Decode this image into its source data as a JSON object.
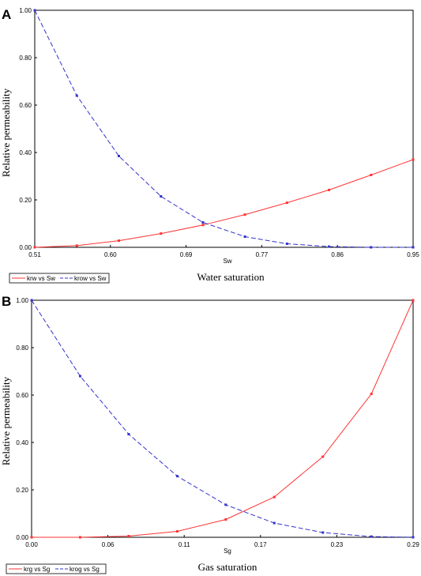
{
  "chart_data": [
    {
      "type": "line",
      "panel_label": "A",
      "xlabel": "Sw",
      "xlabel_outer": "Water saturation",
      "ylabel": "Relative permeability",
      "xlim": [
        0.51,
        0.95
      ],
      "ylim": [
        0,
        1
      ],
      "x_ticks": [
        "0.51",
        "0.60",
        "0.69",
        "0.77",
        "0.86",
        "0.95"
      ],
      "y_ticks": [
        "0.00",
        "0.20",
        "0.40",
        "0.60",
        "0.80",
        "1.00"
      ],
      "grid": false,
      "legend_position": "bottom-left",
      "series": [
        {
          "name": "krw vs Sw",
          "color": "#ff3333",
          "dash": "solid",
          "x": [
            0.51,
            0.5589,
            0.6078,
            0.6567,
            0.7056,
            0.7544,
            0.8033,
            0.8522,
            0.9011,
            0.95
          ],
          "y": [
            0,
            0.007,
            0.028,
            0.058,
            0.094,
            0.138,
            0.188,
            0.242,
            0.305,
            0.37
          ]
        },
        {
          "name": "krow vs Sw",
          "color": "#3333cc",
          "dash": "dashed",
          "x": [
            0.51,
            0.5589,
            0.6078,
            0.6567,
            0.7056,
            0.7544,
            0.8033,
            0.8522,
            0.9011,
            0.95
          ],
          "y": [
            1.0,
            0.64,
            0.385,
            0.215,
            0.105,
            0.045,
            0.015,
            0.003,
            0.0,
            0.0
          ]
        }
      ]
    },
    {
      "type": "line",
      "panel_label": "B",
      "xlabel": "Sg",
      "xlabel_outer": "Gas saturation",
      "ylabel": "Relative permeability",
      "xlim": [
        0,
        0.29
      ],
      "ylim": [
        0,
        1
      ],
      "x_ticks": [
        "0.00",
        "0.06",
        "0.11",
        "0.17",
        "0.23",
        "0.29"
      ],
      "y_ticks": [
        "0.00",
        "0.20",
        "0.40",
        "0.60",
        "0.80",
        "1.00"
      ],
      "grid": false,
      "legend_position": "bottom-left",
      "series": [
        {
          "name": "krg vs Sg",
          "color": "#ff3333",
          "dash": "solid",
          "x": [
            0,
            0.0369,
            0.0738,
            0.1107,
            0.1476,
            0.1845,
            0.2214,
            0.2583,
            0.29
          ],
          "y": [
            0,
            0.0,
            0.005,
            0.025,
            0.075,
            0.17,
            0.34,
            0.605,
            1.0
          ]
        },
        {
          "name": "krog vs Sg",
          "color": "#3333cc",
          "dash": "dashed",
          "x": [
            0,
            0.0369,
            0.0738,
            0.1107,
            0.1476,
            0.1845,
            0.2214,
            0.2583,
            0.29
          ],
          "y": [
            1.0,
            0.68,
            0.435,
            0.258,
            0.137,
            0.06,
            0.02,
            0.003,
            0.0
          ]
        }
      ]
    }
  ]
}
